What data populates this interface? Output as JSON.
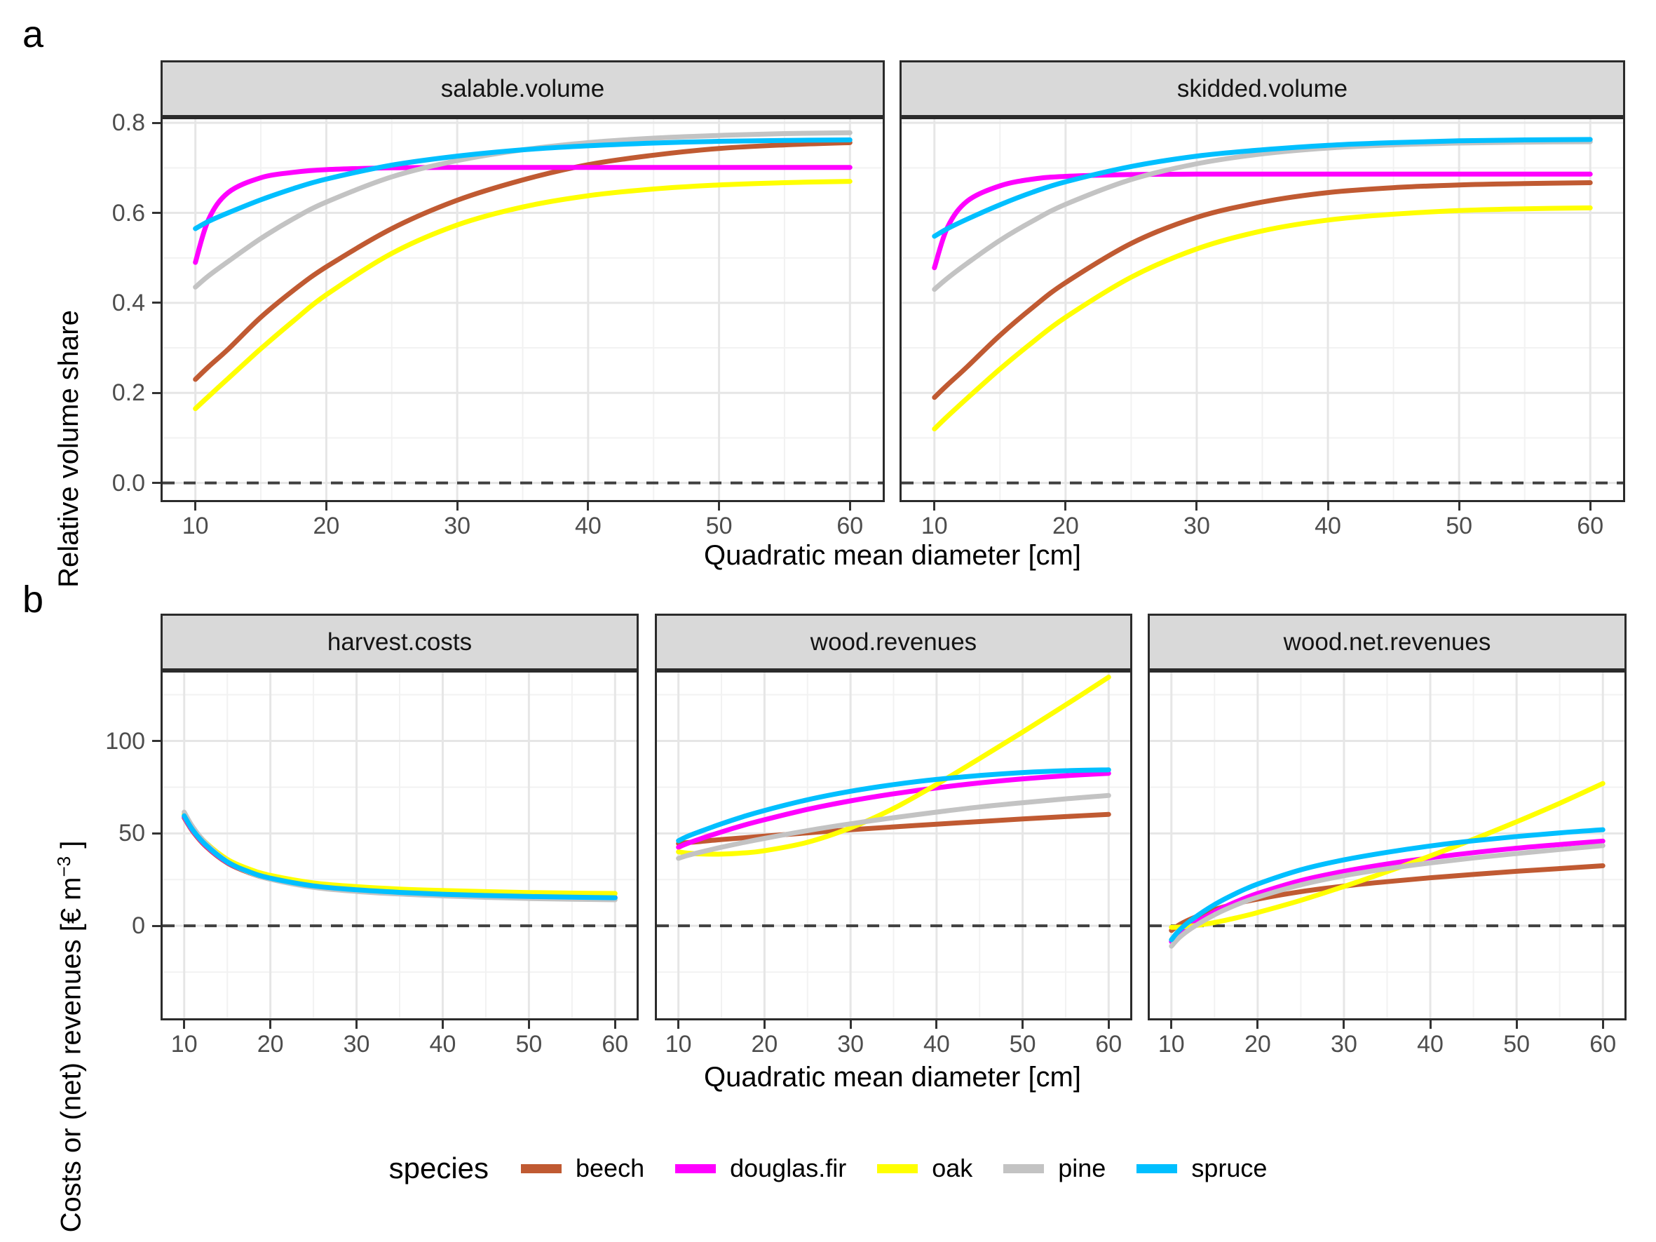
{
  "figure": {
    "panel_a_label": "a",
    "panel_b_label": "b",
    "x_axis_title": "Quadratic mean diameter [cm]"
  },
  "colors": {
    "species": {
      "beech": "#C05A32",
      "douglas.fir": "#FF00FF",
      "oak": "#FFFF00",
      "pine": "#C3C3C3",
      "spruce": "#00BFFF"
    },
    "grid_major": "#E6E6E6",
    "grid_minor": "#F2F2F2",
    "zero_dash": "#404040",
    "tick_text": "#4D4D4D",
    "strip_bg": "#D9D9D9",
    "panel_border": "#2B2B2B"
  },
  "legend": {
    "title": "species",
    "items": [
      {
        "label": "beech",
        "color": "#C05A32"
      },
      {
        "label": "douglas.fir",
        "color": "#FF00FF"
      },
      {
        "label": "oak",
        "color": "#FFFF00"
      },
      {
        "label": "pine",
        "color": "#C3C3C3"
      },
      {
        "label": "spruce",
        "color": "#00BFFF"
      }
    ]
  },
  "axes": {
    "a": {
      "y_title": "Relative volume share",
      "xlim": [
        7.5,
        62.5
      ],
      "ylim": [
        -0.038,
        0.808
      ],
      "x_major": [
        10,
        20,
        30,
        40,
        50,
        60
      ],
      "x_minor": [
        15,
        25,
        35,
        45,
        55
      ],
      "x_labels": [
        "10",
        "20",
        "30",
        "40",
        "50",
        "60"
      ],
      "y_major": [
        0,
        0.2,
        0.4,
        0.6,
        0.8
      ],
      "y_minor": [
        0.1,
        0.3,
        0.5,
        0.7
      ],
      "y_labels": [
        "0.0",
        "0.2",
        "0.4",
        "0.6",
        "0.8"
      ],
      "zero_line": 0,
      "grid": true,
      "legend_position": "bottom"
    },
    "b": {
      "y_title_parts": {
        "before": "Costs or (net) revenues [€ m",
        "sup": "−3",
        "after": " ]"
      },
      "xlim": [
        7.5,
        62.5
      ],
      "ylim": [
        -50,
        137
      ],
      "x_major": [
        10,
        20,
        30,
        40,
        50,
        60
      ],
      "x_minor": [
        15,
        25,
        35,
        45,
        55
      ],
      "x_labels": [
        "10",
        "20",
        "30",
        "40",
        "50",
        "60"
      ],
      "y_major": [
        0,
        50,
        100
      ],
      "y_minor": [
        -25,
        25,
        75,
        125
      ],
      "y_labels": [
        "0",
        "50",
        "100"
      ],
      "zero_line": 0,
      "grid": true,
      "legend_position": "bottom"
    }
  },
  "chart_data": [
    {
      "type": "line",
      "row": "a",
      "facet": "salable.volume",
      "xlabel": "Quadratic mean diameter [cm]",
      "ylabel": "Relative volume share",
      "x": [
        10,
        11,
        12.5,
        15,
        17.5,
        20,
        25,
        30,
        35,
        40,
        45,
        50,
        55,
        60
      ],
      "series": [
        {
          "name": "beech",
          "values": [
            0.23,
            0.258,
            0.297,
            0.368,
            0.428,
            0.48,
            0.565,
            0.628,
            0.673,
            0.707,
            0.728,
            0.743,
            0.751,
            0.756
          ]
        },
        {
          "name": "douglas.fir",
          "values": [
            0.49,
            0.585,
            0.645,
            0.678,
            0.69,
            0.696,
            0.7,
            0.701,
            0.701,
            0.701,
            0.701,
            0.701,
            0.701,
            0.701
          ]
        },
        {
          "name": "oak",
          "values": [
            0.165,
            0.192,
            0.232,
            0.298,
            0.36,
            0.418,
            0.51,
            0.573,
            0.613,
            0.638,
            0.653,
            0.662,
            0.667,
            0.67
          ]
        },
        {
          "name": "pine",
          "values": [
            0.435,
            0.46,
            0.492,
            0.543,
            0.587,
            0.624,
            0.68,
            0.716,
            0.74,
            0.756,
            0.766,
            0.772,
            0.776,
            0.778
          ]
        },
        {
          "name": "spruce",
          "values": [
            0.565,
            0.581,
            0.6,
            0.629,
            0.654,
            0.675,
            0.706,
            0.726,
            0.74,
            0.749,
            0.755,
            0.759,
            0.761,
            0.762
          ]
        }
      ]
    },
    {
      "type": "line",
      "row": "a",
      "facet": "skidded.volume",
      "xlabel": "Quadratic mean diameter [cm]",
      "ylabel": "Relative volume share",
      "x": [
        10,
        11,
        12.5,
        15,
        17.5,
        20,
        25,
        30,
        35,
        40,
        45,
        50,
        55,
        60
      ],
      "series": [
        {
          "name": "beech",
          "values": [
            0.19,
            0.218,
            0.258,
            0.328,
            0.39,
            0.445,
            0.532,
            0.59,
            0.624,
            0.645,
            0.656,
            0.662,
            0.665,
            0.667
          ]
        },
        {
          "name": "douglas.fir",
          "values": [
            0.478,
            0.568,
            0.626,
            0.66,
            0.675,
            0.681,
            0.685,
            0.686,
            0.686,
            0.686,
            0.686,
            0.686,
            0.686,
            0.686
          ]
        },
        {
          "name": "oak",
          "values": [
            0.12,
            0.148,
            0.188,
            0.253,
            0.313,
            0.368,
            0.457,
            0.52,
            0.56,
            0.584,
            0.597,
            0.605,
            0.609,
            0.611
          ]
        },
        {
          "name": "pine",
          "values": [
            0.43,
            0.455,
            0.488,
            0.539,
            0.582,
            0.619,
            0.674,
            0.709,
            0.731,
            0.744,
            0.751,
            0.755,
            0.757,
            0.758
          ]
        },
        {
          "name": "spruce",
          "values": [
            0.548,
            0.565,
            0.586,
            0.618,
            0.646,
            0.669,
            0.703,
            0.726,
            0.74,
            0.75,
            0.756,
            0.76,
            0.762,
            0.763
          ]
        }
      ]
    },
    {
      "type": "line",
      "row": "b",
      "facet": "harvest.costs",
      "xlabel": "Quadratic mean diameter [cm]",
      "ylabel": "Costs or (net) revenues [€ m⁻³]",
      "x": [
        10,
        11,
        12.5,
        15,
        17.5,
        20,
        25,
        30,
        35,
        40,
        45,
        50,
        55,
        60
      ],
      "series": [
        {
          "name": "beech",
          "values": [
            58.5,
            51.0,
            43.0,
            34.0,
            28.8,
            25.3,
            21.2,
            19.2,
            17.9,
            17.0,
            16.3,
            15.8,
            15.4,
            15.1
          ]
        },
        {
          "name": "douglas.fir",
          "values": [
            59.0,
            51.5,
            43.5,
            34.4,
            29.2,
            25.7,
            21.6,
            19.5,
            18.2,
            17.3,
            16.6,
            16.1,
            15.7,
            15.4
          ]
        },
        {
          "name": "oak",
          "values": [
            60.5,
            53.0,
            45.0,
            36.0,
            30.8,
            27.3,
            23.2,
            21.2,
            19.9,
            19.1,
            18.5,
            18.0,
            17.7,
            17.5
          ]
        },
        {
          "name": "pine",
          "values": [
            61.5,
            53.5,
            44.8,
            34.8,
            29.0,
            25.2,
            20.8,
            18.6,
            17.2,
            16.2,
            15.4,
            14.8,
            14.4,
            14.1
          ]
        },
        {
          "name": "spruce",
          "values": [
            59.5,
            51.8,
            43.8,
            34.6,
            29.3,
            25.8,
            21.6,
            19.5,
            18.1,
            17.1,
            16.4,
            15.9,
            15.5,
            15.2
          ]
        }
      ]
    },
    {
      "type": "line",
      "row": "b",
      "facet": "wood.revenues",
      "xlabel": "Quadratic mean diameter [cm]",
      "ylabel": "Costs or (net) revenues [€ m⁻³]",
      "x": [
        10,
        11,
        12.5,
        15,
        17.5,
        20,
        25,
        30,
        35,
        40,
        45,
        50,
        55,
        60
      ],
      "series": [
        {
          "name": "beech",
          "values": [
            44.5,
            45.0,
            45.6,
            46.7,
            47.6,
            48.5,
            50.3,
            52.0,
            53.5,
            55.0,
            56.4,
            57.8,
            59.1,
            60.3
          ]
        },
        {
          "name": "douglas.fir",
          "values": [
            42.5,
            44.5,
            47.0,
            50.8,
            54.3,
            57.4,
            63.0,
            67.6,
            71.4,
            74.6,
            77.3,
            79.5,
            81.2,
            82.5
          ]
        },
        {
          "name": "oak",
          "values": [
            40.0,
            39.4,
            38.9,
            38.8,
            39.4,
            40.6,
            45.2,
            53.0,
            63.5,
            76.5,
            90.5,
            104.8,
            119.5,
            134.5
          ]
        },
        {
          "name": "pine",
          "values": [
            36.5,
            38.0,
            39.8,
            42.5,
            45.0,
            47.3,
            51.5,
            55.2,
            58.5,
            61.5,
            64.3,
            66.6,
            68.7,
            70.5
          ]
        },
        {
          "name": "spruce",
          "values": [
            46.0,
            48.3,
            51.0,
            55.2,
            59.0,
            62.4,
            68.2,
            72.8,
            76.4,
            79.2,
            81.3,
            82.9,
            83.9,
            84.4
          ]
        }
      ]
    },
    {
      "type": "line",
      "row": "b",
      "facet": "wood.net.revenues",
      "xlabel": "Quadratic mean diameter [cm]",
      "ylabel": "Costs or (net) revenues [€ m⁻³]",
      "x": [
        10,
        11,
        12.5,
        15,
        17.5,
        20,
        25,
        30,
        35,
        40,
        45,
        50,
        55,
        60
      ],
      "series": [
        {
          "name": "beech",
          "values": [
            -2.5,
            0.8,
            4.2,
            8.8,
            12.0,
            14.5,
            18.5,
            21.5,
            23.9,
            26.0,
            27.8,
            29.5,
            31.0,
            32.5
          ]
        },
        {
          "name": "douglas.fir",
          "values": [
            -8.5,
            -4.0,
            0.8,
            7.5,
            13.0,
            17.5,
            24.5,
            29.5,
            33.5,
            36.8,
            39.6,
            42.0,
            44.0,
            45.8
          ]
        },
        {
          "name": "oak",
          "values": [
            -0.8,
            -0.7,
            0.0,
            1.8,
            4.3,
            7.2,
            13.8,
            21.3,
            29.3,
            37.8,
            46.8,
            56.3,
            66.3,
            77.0
          ]
        },
        {
          "name": "pine",
          "values": [
            -11.0,
            -6.0,
            -0.8,
            6.0,
            11.3,
            15.5,
            22.2,
            27.1,
            30.9,
            34.0,
            36.7,
            39.1,
            41.3,
            43.4
          ]
        },
        {
          "name": "spruce",
          "values": [
            -7.5,
            -2.0,
            3.8,
            11.5,
            17.6,
            22.6,
            30.3,
            35.7,
            39.8,
            43.2,
            46.0,
            48.3,
            50.3,
            52.0
          ]
        }
      ]
    }
  ]
}
